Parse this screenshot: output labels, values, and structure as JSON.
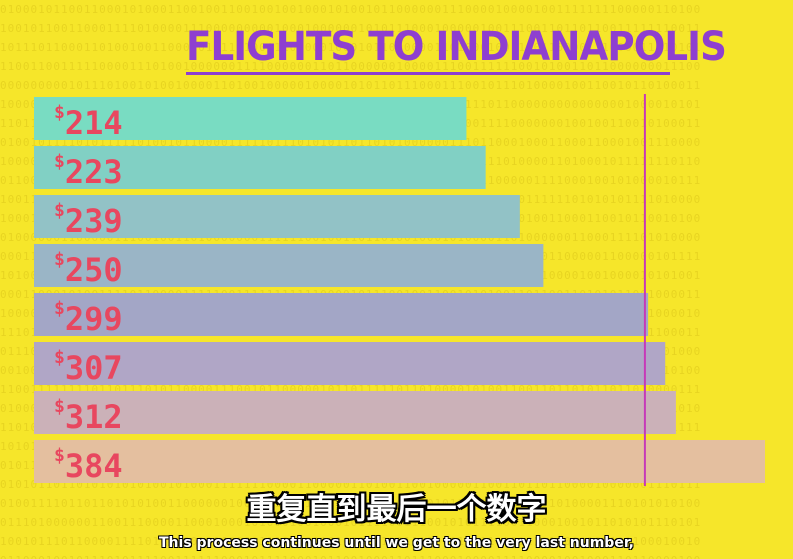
{
  "colors": {
    "background": "#f6e62a",
    "title": "#8e3fd0",
    "label": "#e8475f",
    "marker_line": "#c63ab8",
    "bar_gradient": [
      "#79dcc2",
      "#81d0c4",
      "#92c2c6",
      "#9ab5c6",
      "#a3a6c6",
      "#b0a6c6",
      "#cbb1b8",
      "#e4bf9f"
    ]
  },
  "chart_data": {
    "type": "bar",
    "orientation": "horizontal",
    "title": "FLIGHTS TO INDIANAPOLIS",
    "categories": [
      "$214",
      "$223",
      "$239",
      "$250",
      "$299",
      "$307",
      "$312",
      "$384"
    ],
    "values": [
      214,
      223,
      239,
      250,
      299,
      307,
      312,
      384
    ],
    "currency_symbol": "$",
    "marker_line_value": 312,
    "xlabel": "",
    "ylabel": "",
    "grid": false
  },
  "subtitles": {
    "chinese": "重复直到最后一个数字",
    "english": "This process continues until we get to the very last number,"
  }
}
